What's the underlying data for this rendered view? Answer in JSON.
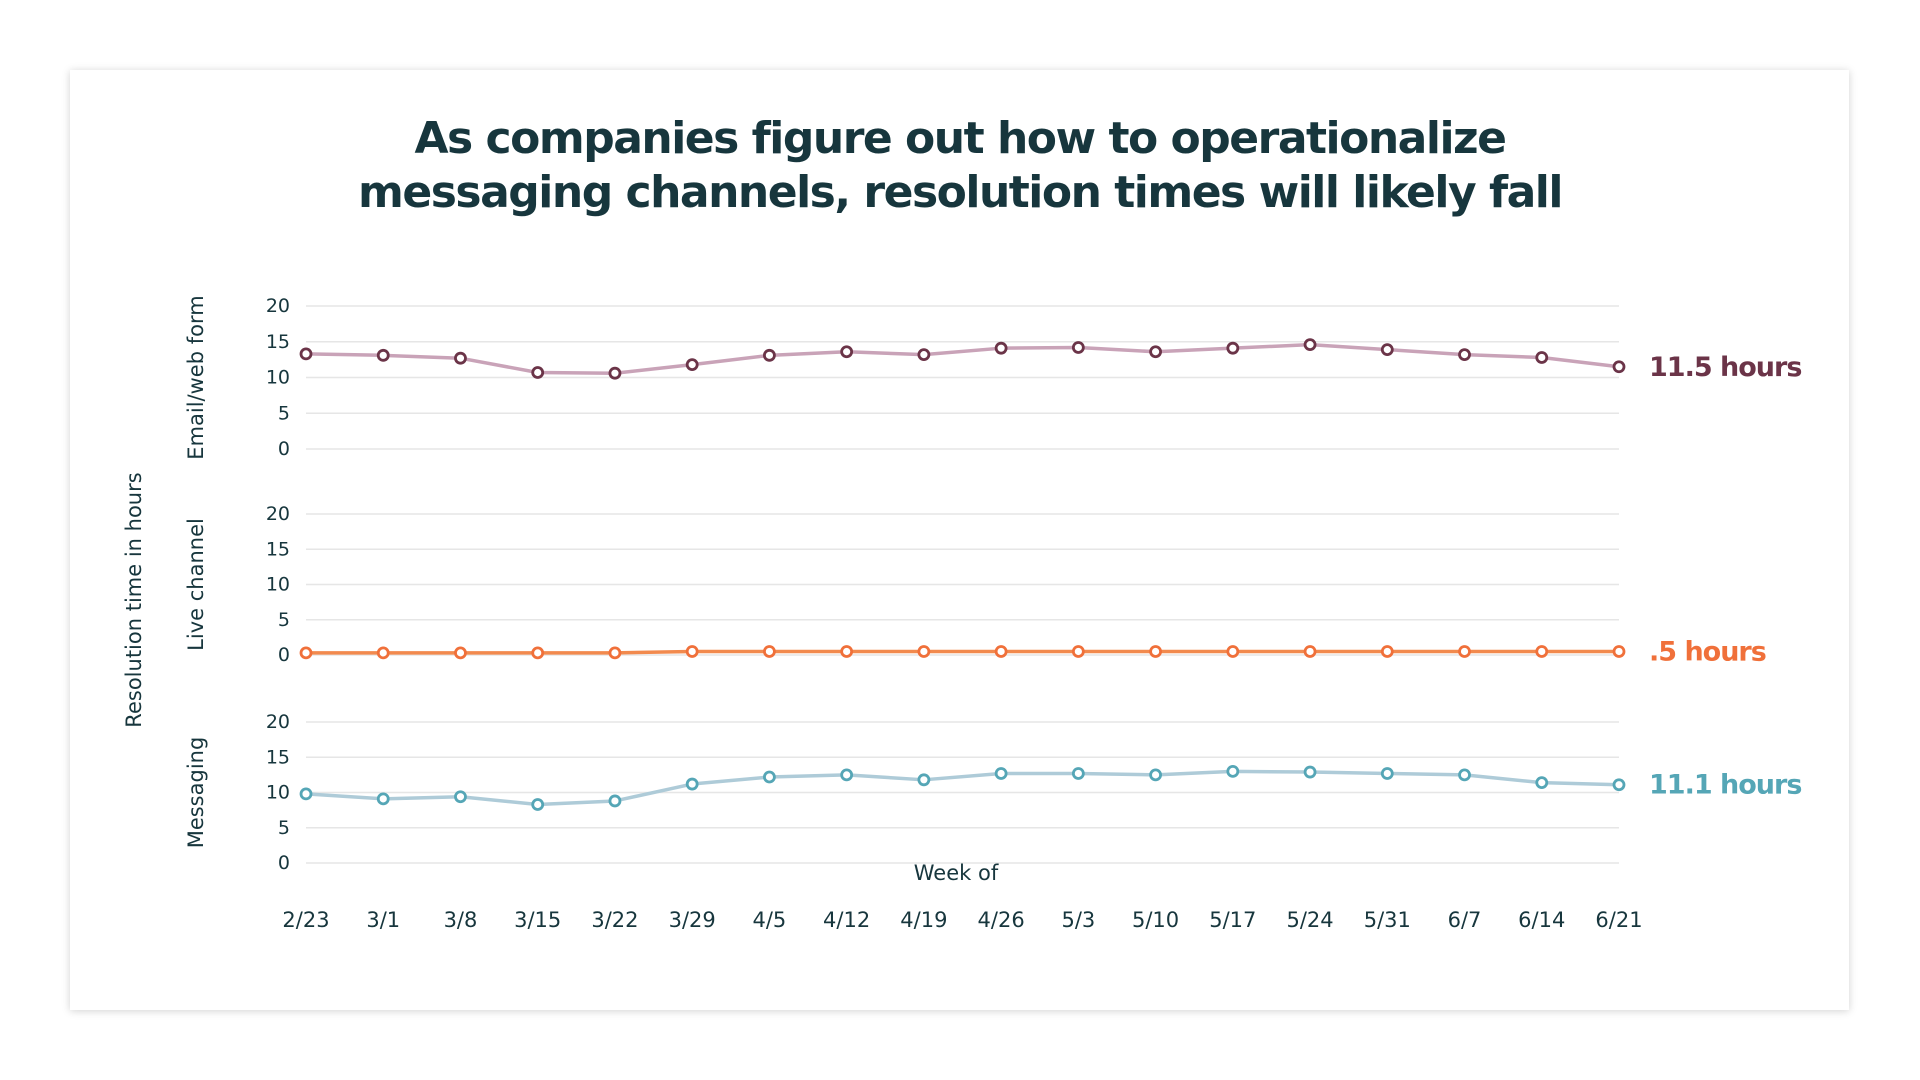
{
  "chart_data": {
    "type": "line",
    "title": "As companies figure out how to operationalize messaging channels, resolution times will likely fall",
    "title_lines": [
      "As companies figure out how to operationalize",
      "messaging channels, resolution times will likely fall"
    ],
    "xlabel": "Week of",
    "ylabel": "Resolution time in hours",
    "x": [
      "2/23",
      "3/1",
      "3/8",
      "3/15",
      "3/22",
      "3/29",
      "4/5",
      "4/12",
      "4/19",
      "4/26",
      "5/3",
      "5/10",
      "5/17",
      "5/24",
      "5/31",
      "6/7",
      "6/14",
      "6/21"
    ],
    "yticks": [
      "0",
      "5",
      "10",
      "15",
      "20"
    ],
    "ylim": [
      0,
      20
    ],
    "grid": true,
    "series": [
      {
        "name": "Email/web form",
        "end_label": "11.5 hours",
        "color": "#6b3448",
        "line_color": "#c9a3b8",
        "values": [
          13.3,
          13.1,
          12.7,
          10.7,
          10.6,
          11.8,
          13.1,
          13.6,
          13.2,
          14.1,
          14.2,
          13.6,
          14.1,
          14.6,
          13.9,
          13.2,
          12.8,
          11.5
        ]
      },
      {
        "name": "Live channel",
        "end_label": ".5 hours",
        "color": "#f0703a",
        "line_color": "#f28a4e",
        "values": [
          0.3,
          0.3,
          0.3,
          0.3,
          0.3,
          0.5,
          0.5,
          0.5,
          0.5,
          0.5,
          0.5,
          0.5,
          0.5,
          0.5,
          0.5,
          0.5,
          0.5,
          0.5
        ]
      },
      {
        "name": "Messaging",
        "end_label": "11.1 hours",
        "color": "#55a6b6",
        "line_color": "#aecbd8",
        "values": [
          9.8,
          9.1,
          9.4,
          8.3,
          8.8,
          11.2,
          12.2,
          12.5,
          11.8,
          12.7,
          12.7,
          12.5,
          13.0,
          12.9,
          12.7,
          12.5,
          11.4,
          11.1
        ]
      }
    ]
  }
}
